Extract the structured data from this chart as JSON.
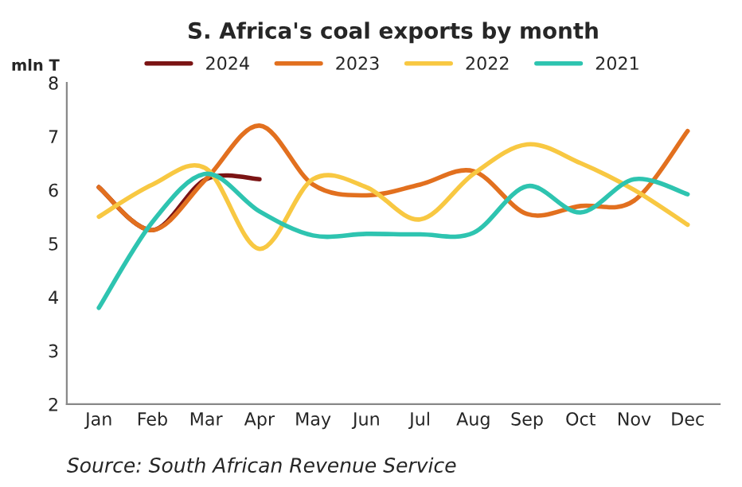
{
  "chart_data": {
    "type": "line",
    "title": "S. Africa's coal exports by month",
    "ylabel": "mln T",
    "categories": [
      "Jan",
      "Feb",
      "Mar",
      "Apr",
      "May",
      "Jun",
      "Jul",
      "Aug",
      "Sep",
      "Oct",
      "Nov",
      "Dec"
    ],
    "series": [
      {
        "name": "2024",
        "color": "#7b1414",
        "values": [
          6.05,
          5.25,
          6.2,
          6.2,
          null,
          null,
          null,
          null,
          null,
          null,
          null,
          null
        ]
      },
      {
        "name": "2023",
        "color": "#e2701f",
        "values": [
          6.05,
          5.25,
          6.2,
          7.2,
          6.1,
          5.9,
          6.1,
          6.35,
          5.55,
          5.7,
          5.8,
          7.1
        ]
      },
      {
        "name": "2022",
        "color": "#f8c842",
        "values": [
          5.5,
          6.1,
          6.4,
          4.9,
          6.2,
          6.05,
          5.45,
          6.3,
          6.85,
          6.5,
          6.0,
          5.35
        ]
      },
      {
        "name": "2021",
        "color": "#2ec4b0",
        "values": [
          3.8,
          5.4,
          6.3,
          5.6,
          5.15,
          5.18,
          5.17,
          5.2,
          6.07,
          5.58,
          6.2,
          5.92
        ]
      }
    ],
    "ylim": [
      2,
      8
    ],
    "yticks": [
      2,
      3,
      4,
      5,
      6,
      7,
      8
    ],
    "grid": false,
    "legend": "top",
    "marker": "none",
    "line_style": "solid",
    "annotations": [
      "Source: South African Revenue Service"
    ]
  }
}
